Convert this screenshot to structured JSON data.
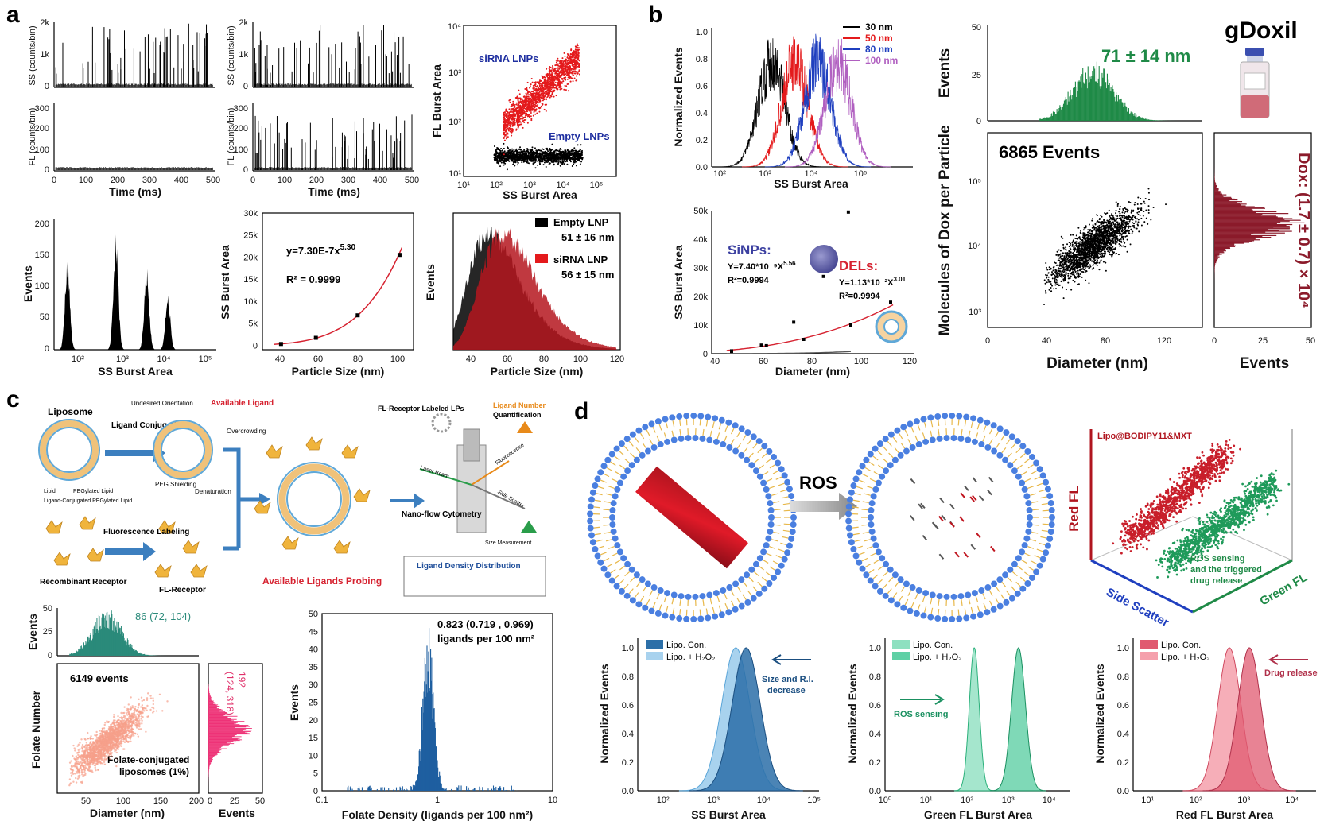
{
  "panels": {
    "a": {
      "label": "a",
      "trace_ylabels": [
        "SS (counts/bin)",
        "FL (counts/bin)"
      ],
      "trace_xlabel": "Time (ms)",
      "trace_ss_yticks": [
        "0",
        "1k",
        "2k"
      ],
      "trace_fl_yticks": [
        "0",
        "100",
        "200",
        "300"
      ],
      "trace_xticks": [
        "0",
        "100",
        "200",
        "300",
        "400",
        "500"
      ],
      "scatter": {
        "xlabel": "SS Burst Area",
        "ylabel": "FL Burst Area",
        "siRNA_label": "siRNA LNPs",
        "empty_label": "Empty LNPs",
        "xticks": [
          "10¹",
          "10²",
          "10³",
          "10⁴",
          "10⁵"
        ],
        "yticks": [
          "10¹",
          "10²",
          "10³",
          "10⁴"
        ]
      },
      "hist": {
        "xlabel": "SS Burst Area",
        "ylabel": "Events",
        "yticks": [
          "0",
          "50",
          "100",
          "150",
          "200"
        ],
        "xticks": [
          "10²",
          "10³",
          "10⁴",
          "10⁵"
        ]
      },
      "fit": {
        "xlabel": "Particle Size (nm)",
        "ylabel": "SS Burst Area",
        "equation": "y=7.30E-7x",
        "exponent": "5.30",
        "r2": "R² = 0.9999",
        "xticks": [
          "40",
          "60",
          "80",
          "100"
        ],
        "yticks": [
          "0",
          "5k",
          "10k",
          "15k",
          "20k",
          "25k",
          "30k"
        ]
      },
      "size": {
        "xlabel": "Particle Size (nm)",
        "ylabel": "Events",
        "legend": [
          {
            "name": "Empty LNP",
            "stat": "51 ± 16 nm",
            "color": "#000000"
          },
          {
            "name": "siRNA LNP",
            "stat": "56 ± 15 nm",
            "color": "#e41a1c"
          }
        ],
        "xticks": [
          "40",
          "60",
          "80",
          "100",
          "120"
        ]
      }
    },
    "b": {
      "label": "b",
      "norm": {
        "ylabel": "Normalized Events",
        "xlabel": "SS Burst Area",
        "legend": [
          {
            "name": "30 nm",
            "color": "#000000"
          },
          {
            "name": "50 nm",
            "color": "#e41a1c"
          },
          {
            "name": "80 nm",
            "color": "#1f3fbf"
          },
          {
            "name": "100 nm",
            "color": "#b05fc0"
          }
        ],
        "yticks": [
          "0.0",
          "0.2",
          "0.4",
          "0.6",
          "0.8",
          "1.0"
        ],
        "xticks": [
          "10²",
          "10³",
          "10⁴",
          "10⁵"
        ]
      },
      "fit": {
        "ylabel": "SS Burst Area",
        "xlabel": "Diameter (nm)",
        "sinps_title": "SiNPs:",
        "sinps_eq": "Y=7.40*10⁻⁹X",
        "sinps_exp": "5.56",
        "sinps_r2": "R²=0.9994",
        "dels_title": "DELs:",
        "dels_eq": "Y=1.13*10⁻²X",
        "dels_exp": "3.01",
        "dels_r2": "R²=0.9994",
        "xticks": [
          "40",
          "60",
          "80",
          "100",
          "120"
        ],
        "yticks": [
          "0",
          "10k",
          "20k",
          "30k",
          "40k",
          "50k"
        ]
      },
      "gdoxil": {
        "title": "gDoxil",
        "hist_stat": "71 ± 14 nm",
        "events_label": "6865 Events",
        "xlabel": "Diameter (nm)",
        "ylabel": "Molecules of Dox per Particle",
        "hist_ylabel": "Events",
        "side_xlabel": "Events",
        "side_stat": "Dox: (1.7 ± 0.7) × 10⁴",
        "top_yticks": [
          "0",
          "25",
          "50"
        ],
        "xticks": [
          "0",
          "40",
          "80",
          "120"
        ],
        "yticks": [
          "10³",
          "10⁴",
          "10⁵"
        ],
        "side_xticks": [
          "0",
          "25",
          "50"
        ]
      }
    },
    "c": {
      "label": "c",
      "schematic": {
        "liposome": "Liposome",
        "ligand_conj": "Ligand Conjugation",
        "undesired": "Undesired Orientation",
        "available_ligand": "Available Ligand",
        "overcrowding": "Overcrowding",
        "peg_shielding": "PEG Shielding",
        "denaturation": "Denaturation",
        "lipid": "Lipid",
        "peg_lipid": "PEGylated Lipid",
        "ligand_peg": "Ligand-Conjugated PEGylated Lipid",
        "fluor_label": "Fluorescence Labeling",
        "recombinant": "Recombinant Receptor",
        "fl_receptor": "FL-Receptor",
        "available_probe": "Available Ligands Probing",
        "fl_labeled": "FL-Receptor Labeled LPs",
        "ligand_number": "Ligand Number",
        "quantification": "Quantification",
        "fluorescence": "Fluorescence",
        "laser": "Laser Beam",
        "side_scatter": "Side Scatter",
        "nanoflow": "Nano-flow Cytometry",
        "size_meas": "Size Measurement",
        "density_dist": "Ligand Density Distribution"
      },
      "scatter": {
        "events_label": "6149 events",
        "top_stat": "86 (72, 104)",
        "side_stat_1": "192",
        "side_stat_2": "(124, 318)",
        "caption_1": "Folate-conjugated",
        "caption_2": "liposomes (1%)",
        "xlabel": "Diameter (nm)",
        "ylabel": "Folate Number",
        "hist_ylabel": "Events",
        "side_xlabel": "Events",
        "xticks": [
          "50",
          "100",
          "150",
          "200"
        ],
        "top_yticks": [
          "0",
          "25",
          "50"
        ],
        "side_xticks": [
          "0",
          "25",
          "50"
        ]
      },
      "density": {
        "stat_1": "0.823 (0.719 , 0.969)",
        "stat_2": "ligands per 100 nm²",
        "xlabel": "Folate Density (ligands per 100 nm²)",
        "ylabel": "Events",
        "xticks": [
          "0.1",
          "1",
          "10"
        ],
        "yticks": [
          "0",
          "5",
          "10",
          "15",
          "20",
          "25",
          "30",
          "35",
          "40",
          "45",
          "50"
        ]
      }
    },
    "d": {
      "label": "d",
      "ros": "ROS",
      "scatter3d": {
        "title": "Lipo@BODIPY11&MXT",
        "note_1": "ROS sensing",
        "note_2": "and the triggered",
        "note_3": "drug release",
        "ax_red": "Red FL",
        "ax_side": "Side Scatter",
        "ax_green": "Green FL"
      },
      "h1": {
        "xlabel": "SS Burst Area",
        "ylabel": "Normalized Events",
        "legend": [
          "Lipo. Con.",
          "Lipo. + H₂O₂"
        ],
        "note_1": "Size and R.I.",
        "note_2": "decrease",
        "xticks": [
          "10²",
          "10³",
          "10⁴",
          "10⁵"
        ],
        "yticks": [
          "0.0",
          "0.2",
          "0.4",
          "0.6",
          "0.8",
          "1.0"
        ]
      },
      "h2": {
        "xlabel": "Green FL Burst Area",
        "ylabel": "Normalized Events",
        "legend": [
          "Lipo. Con.",
          "Lipo. + H₂O₂"
        ],
        "note_1": "ROS sensing",
        "xticks": [
          "10⁰",
          "10¹",
          "10²",
          "10³",
          "10⁴"
        ],
        "yticks": [
          "0.0",
          "0.2",
          "0.4",
          "0.6",
          "0.8",
          "1.0"
        ]
      },
      "h3": {
        "xlabel": "Red FL Burst Area",
        "ylabel": "Normalized Events",
        "legend": [
          "Lipo. Con.",
          "Lipo. + H₂O₂"
        ],
        "note_1": "Drug release",
        "xticks": [
          "10¹",
          "10²",
          "10³",
          "10⁴"
        ],
        "yticks": [
          "0.0",
          "0.2",
          "0.4",
          "0.6",
          "0.8",
          "1.0"
        ]
      }
    }
  },
  "chart_data": [
    {
      "type": "line",
      "panel": "a",
      "title": "",
      "xlabel": "Time (ms)",
      "ylabel": "SS (counts/bin)",
      "xlim": [
        0,
        500
      ],
      "ylim": [
        0,
        2000
      ]
    },
    {
      "type": "line",
      "panel": "a",
      "title": "",
      "xlabel": "Time (ms)",
      "ylabel": "FL (counts/bin)",
      "xlim": [
        0,
        500
      ],
      "ylim": [
        0,
        300
      ]
    },
    {
      "type": "scatter",
      "panel": "a",
      "xlabel": "SS Burst Area",
      "ylabel": "FL Burst Area",
      "xscale": "log",
      "yscale": "log",
      "xlim": [
        10,
        1000000
      ],
      "ylim": [
        10,
        10000
      ],
      "series": [
        {
          "name": "siRNA LNPs",
          "color": "#e41a1c"
        },
        {
          "name": "Empty LNPs",
          "color": "#000000"
        }
      ]
    },
    {
      "type": "bar",
      "panel": "a",
      "xlabel": "SS Burst Area",
      "ylabel": "Events",
      "xscale": "log",
      "ylim": [
        0,
        220
      ],
      "peaks": [
        {
          "x": 80,
          "y": 160
        },
        {
          "x": 1000,
          "y": 205
        },
        {
          "x": 5000,
          "y": 145
        },
        {
          "x": 15000,
          "y": 95
        }
      ]
    },
    {
      "type": "scatter",
      "panel": "a",
      "xlabel": "Particle Size (nm)",
      "ylabel": "SS Burst Area",
      "xlim": [
        35,
        100
      ],
      "ylim": [
        -1000,
        30000
      ],
      "x": [
        43,
        58,
        76,
        94
      ],
      "y": [
        300,
        1700,
        6800,
        20500
      ]
    },
    {
      "type": "bar",
      "panel": "a",
      "xlabel": "Particle Size (nm)",
      "ylabel": "Events",
      "xlim": [
        28,
        120
      ],
      "series": [
        {
          "name": "Empty LNP",
          "mean": 51,
          "sd": 16,
          "color": "#000000"
        },
        {
          "name": "siRNA LNP",
          "mean": 56,
          "sd": 15,
          "color": "#e41a1c"
        }
      ]
    },
    {
      "type": "line",
      "panel": "b",
      "xlabel": "SS Burst Area",
      "ylabel": "Normalized Events",
      "xscale": "log",
      "xlim": [
        100,
        100000
      ],
      "ylim": [
        0,
        1
      ],
      "series": [
        {
          "name": "30 nm",
          "peak": 800
        },
        {
          "name": "50 nm",
          "peak": 1800
        },
        {
          "name": "80 nm",
          "peak": 4000
        },
        {
          "name": "100 nm",
          "peak": 8000
        }
      ]
    },
    {
      "type": "scatter",
      "panel": "b",
      "xlabel": "Diameter (nm)",
      "ylabel": "SS Burst Area",
      "xlim": [
        40,
        120
      ],
      "ylim": [
        0,
        50000
      ],
      "series": [
        {
          "name": "SiNPs",
          "x": [
            48,
            60,
            73,
            85,
            95
          ],
          "y": [
            800,
            3000,
            11000,
            27000,
            49500
          ]
        },
        {
          "name": "DELs",
          "x": [
            48,
            62,
            77,
            96,
            112
          ],
          "y": [
            1000,
            2800,
            5000,
            10000,
            18000
          ]
        }
      ]
    },
    {
      "type": "scatter",
      "panel": "b",
      "title": "gDoxil",
      "xlabel": "Diameter (nm)",
      "ylabel": "Molecules of Dox per Particle",
      "xlim": [
        0,
        145
      ],
      "ylim": [
        500,
        300000
      ],
      "yscale": "log",
      "n": 6865
    },
    {
      "type": "scatter",
      "panel": "c",
      "xlabel": "Diameter (nm)",
      "ylabel": "Folate Number",
      "xlim": [
        25,
        200
      ],
      "yscale": "log",
      "n": 6149
    },
    {
      "type": "bar",
      "panel": "c",
      "xlabel": "Folate Density (ligands per 100 nm²)",
      "ylabel": "Events",
      "xscale": "log",
      "xlim": [
        0.1,
        10
      ],
      "ylim": [
        0,
        50
      ],
      "peak_x": 0.823
    },
    {
      "type": "area",
      "panel": "d",
      "xlabel": "SS Burst Area",
      "ylabel": "Normalized Events",
      "xscale": "log",
      "xlim": [
        30,
        100000
      ],
      "series": [
        {
          "name": "Lipo. Con.",
          "peak": 4500
        },
        {
          "name": "Lipo. + H₂O₂",
          "peak": 2800
        }
      ]
    },
    {
      "type": "area",
      "panel": "d",
      "xlabel": "Green FL Burst Area",
      "ylabel": "Normalized Events",
      "xscale": "log",
      "xlim": [
        1,
        30000
      ],
      "series": [
        {
          "name": "Lipo. Con.",
          "peak": 150
        },
        {
          "name": "Lipo. + H₂O₂",
          "peak": 1800
        }
      ]
    },
    {
      "type": "area",
      "panel": "d",
      "xlabel": "Red FL Burst Area",
      "ylabel": "Normalized Events",
      "xscale": "log",
      "xlim": [
        5,
        30000
      ],
      "series": [
        {
          "name": "Lipo. Con.",
          "peak": 1300
        },
        {
          "name": "Lipo. + H₂O₂",
          "peak": 500
        }
      ]
    }
  ]
}
